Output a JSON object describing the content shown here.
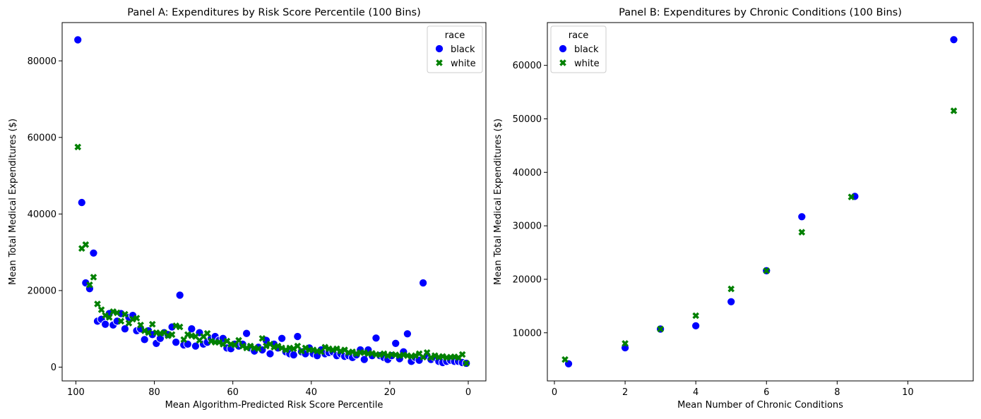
{
  "colors": {
    "black": "#0000ff",
    "white": "#008000"
  },
  "chart_data": [
    {
      "type": "scatter",
      "title": "Panel A: Expenditures by Risk Score Percentile (100 Bins)",
      "xlabel": "Mean Algorithm-Predicted Risk Score Percentile",
      "ylabel": "Mean Total Medical Expenditures ($)",
      "x_reversed": true,
      "xlim": [
        103.5,
        -4.5
      ],
      "ylim": [
        -3600,
        90000
      ],
      "x_ticks": [
        100,
        80,
        60,
        40,
        20,
        0
      ],
      "y_ticks": [
        0,
        20000,
        40000,
        60000,
        80000
      ],
      "grid": false,
      "legend": {
        "title": "race",
        "placement": "top-right"
      },
      "series": [
        {
          "name": "black",
          "marker": "circle",
          "color": "#0000ff",
          "x": [
            99.5,
            98.5,
            97.5,
            96.5,
            95.5,
            94.5,
            93.5,
            92.5,
            91.5,
            90.5,
            89.5,
            88.5,
            87.5,
            86.5,
            85.5,
            84.5,
            83.5,
            82.5,
            81.5,
            80.5,
            79.5,
            78.5,
            77.5,
            76.5,
            75.5,
            74.5,
            73.5,
            72.5,
            71.5,
            70.5,
            69.5,
            68.5,
            67.5,
            66.5,
            65.5,
            64.5,
            63.5,
            62.5,
            61.5,
            60.5,
            59.5,
            58.5,
            57.5,
            56.5,
            55.5,
            54.5,
            53.5,
            52.5,
            51.5,
            50.5,
            49.5,
            48.5,
            47.5,
            46.5,
            45.5,
            44.5,
            43.5,
            42.5,
            41.5,
            40.5,
            39.5,
            38.5,
            37.5,
            36.5,
            35.5,
            34.5,
            33.5,
            32.5,
            31.5,
            30.5,
            29.5,
            28.5,
            27.5,
            26.5,
            25.5,
            24.5,
            23.5,
            22.5,
            21.5,
            20.5,
            19.5,
            18.5,
            17.5,
            16.5,
            15.5,
            14.5,
            13.5,
            12.5,
            11.5,
            10.5,
            9.5,
            8.5,
            7.5,
            6.5,
            5.5,
            4.5,
            3.5,
            2.5,
            1.5,
            0.5
          ],
          "y": [
            85500,
            43000,
            22000,
            20500,
            29800,
            12000,
            12500,
            11200,
            14000,
            11000,
            12000,
            14000,
            10000,
            13000,
            13500,
            9500,
            10000,
            7200,
            9500,
            8500,
            6200,
            7500,
            9000,
            8500,
            10500,
            6500,
            18800,
            5800,
            6000,
            10000,
            5500,
            9000,
            6000,
            6500,
            7500,
            8000,
            7000,
            7500,
            5000,
            4800,
            6000,
            5500,
            6000,
            8800,
            5000,
            4200,
            5200,
            4500,
            7000,
            3500,
            6000,
            5000,
            7500,
            4000,
            3500,
            3200,
            8000,
            4000,
            3500,
            5000,
            3500,
            3000,
            4500,
            3500,
            3800,
            4000,
            3000,
            3500,
            2800,
            3000,
            2500,
            3200,
            4500,
            2000,
            4500,
            3000,
            7600,
            3000,
            2500,
            2000,
            3000,
            6200,
            2200,
            4000,
            8700,
            1500,
            2500,
            1800,
            22000,
            3000,
            2000,
            2500,
            1500,
            1200,
            1500,
            1800,
            1500,
            1500,
            1200,
            1000
          ]
        },
        {
          "name": "white",
          "marker": "x",
          "color": "#008000",
          "x": [
            99.5,
            98.5,
            97.5,
            96.5,
            95.5,
            94.5,
            93.5,
            92.5,
            91.5,
            90.5,
            89.5,
            88.5,
            87.5,
            86.5,
            85.5,
            84.5,
            83.5,
            82.5,
            81.5,
            80.5,
            79.5,
            78.5,
            77.5,
            76.5,
            75.5,
            74.5,
            73.5,
            72.5,
            71.5,
            70.5,
            69.5,
            68.5,
            67.5,
            66.5,
            65.5,
            64.5,
            63.5,
            62.5,
            61.5,
            60.5,
            59.5,
            58.5,
            57.5,
            56.5,
            55.5,
            54.5,
            53.5,
            52.5,
            51.5,
            50.5,
            49.5,
            48.5,
            47.5,
            46.5,
            45.5,
            44.5,
            43.5,
            42.5,
            41.5,
            40.5,
            39.5,
            38.5,
            37.5,
            36.5,
            35.5,
            34.5,
            33.5,
            32.5,
            31.5,
            30.5,
            29.5,
            28.5,
            27.5,
            26.5,
            25.5,
            24.5,
            23.5,
            22.5,
            21.5,
            20.5,
            19.5,
            18.5,
            17.5,
            16.5,
            15.5,
            14.5,
            13.5,
            12.5,
            11.5,
            10.5,
            9.5,
            8.5,
            7.5,
            6.5,
            5.5,
            4.5,
            3.5,
            2.5,
            1.5,
            0.5
          ],
          "y": [
            57500,
            31000,
            32000,
            21500,
            23500,
            16500,
            15000,
            13500,
            13000,
            14500,
            14200,
            12000,
            13800,
            11500,
            12500,
            12800,
            11000,
            9500,
            9000,
            11200,
            9000,
            8800,
            9000,
            8200,
            8500,
            10800,
            10500,
            7200,
            8500,
            8200,
            8000,
            7000,
            8000,
            8800,
            6800,
            6500,
            6500,
            6000,
            6800,
            6000,
            5800,
            7000,
            5500,
            5000,
            5500,
            5000,
            4800,
            7500,
            5500,
            6000,
            5200,
            5500,
            5000,
            4500,
            5000,
            4800,
            5500,
            4200,
            5000,
            4500,
            4500,
            4200,
            4000,
            5200,
            4800,
            4500,
            4800,
            4200,
            4500,
            3800,
            4000,
            3500,
            3800,
            3800,
            3500,
            3600,
            3300,
            3200,
            3500,
            3000,
            3300,
            3200,
            3000,
            3200,
            3000,
            2800,
            3000,
            3500,
            2600,
            3800,
            2500,
            3000,
            2600,
            2800,
            2500,
            2600,
            2700,
            2500,
            3300,
            1000
          ]
        }
      ]
    },
    {
      "type": "scatter",
      "title": "Panel B: Expenditures by Chronic Conditions (100 Bins)",
      "xlabel": "Mean Number of Chronic Conditions",
      "ylabel": "Mean Total Medical Expenditures ($)",
      "x_reversed": false,
      "xlim": [
        -0.2,
        11.85
      ],
      "ylim": [
        1000,
        68000
      ],
      "x_ticks": [
        0,
        2,
        4,
        6,
        8,
        10
      ],
      "y_ticks": [
        10000,
        20000,
        30000,
        40000,
        50000,
        60000
      ],
      "grid": false,
      "legend": {
        "title": "race",
        "placement": "top-left"
      },
      "series": [
        {
          "name": "black",
          "marker": "circle",
          "color": "#0000ff",
          "x": [
            0.4,
            2,
            3,
            4,
            5,
            6,
            7,
            8.5,
            11.3
          ],
          "y": [
            4200,
            7200,
            10700,
            11300,
            15800,
            21600,
            31700,
            35500,
            64800
          ]
        },
        {
          "name": "white",
          "marker": "x",
          "color": "#008000",
          "x": [
            0.3,
            2,
            3,
            4,
            5,
            6,
            7,
            8.4,
            11.3
          ],
          "y": [
            5000,
            8000,
            10700,
            13200,
            18200,
            21600,
            28800,
            35400,
            51500
          ]
        }
      ]
    }
  ]
}
